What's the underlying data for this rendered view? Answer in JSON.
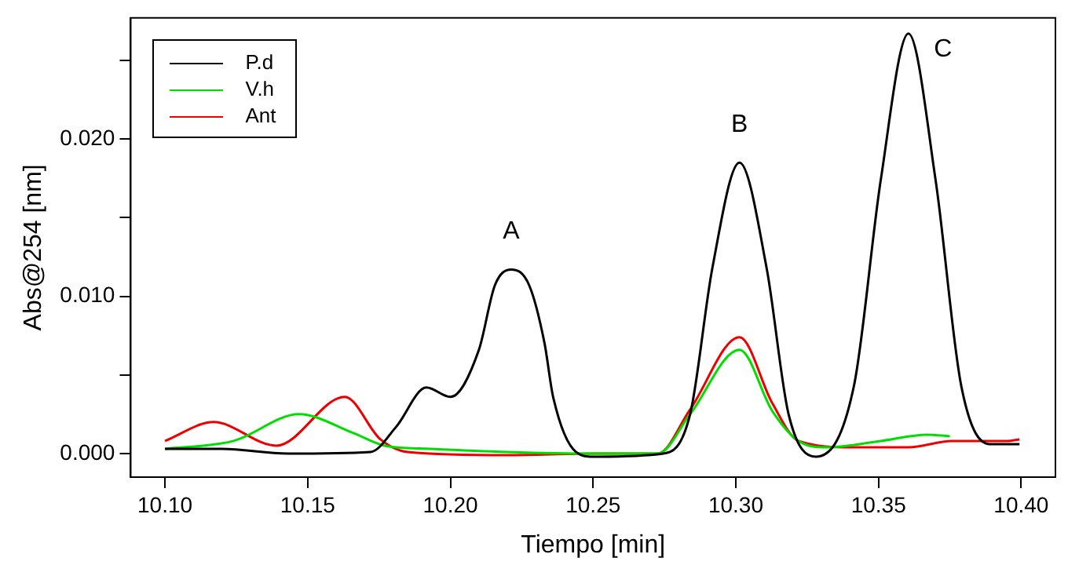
{
  "chart_data": {
    "type": "line",
    "xlabel": "Tiempo [min]",
    "ylabel": "Abs@254 [nm]",
    "xlim": [
      10.088,
      10.412
    ],
    "xticks": [
      {
        "value": 10.1,
        "label": "10.10"
      },
      {
        "value": 10.15,
        "label": "10.15"
      },
      {
        "value": 10.2,
        "label": "10.20"
      },
      {
        "value": 10.25,
        "label": "10.25"
      },
      {
        "value": 10.3,
        "label": "10.30"
      },
      {
        "value": 10.35,
        "label": "10.35"
      },
      {
        "value": 10.4,
        "label": "10.40"
      }
    ],
    "ylim": [
      -0.0015,
      0.0277
    ],
    "yticks": [
      {
        "value": 0,
        "label": "0.000"
      },
      {
        "value": 0.005,
        "label": null
      },
      {
        "value": 0.01,
        "label": "0.010"
      },
      {
        "value": 0.015,
        "label": null
      },
      {
        "value": 0.02,
        "label": "0.020"
      },
      {
        "value": 0.025,
        "label": null
      }
    ],
    "grid": false,
    "legend": "top left",
    "marker": "none",
    "line_style": "solid",
    "series": [
      {
        "name": "P.d",
        "color": "#000000",
        "x": [
          10.1,
          10.12,
          10.143,
          10.172,
          10.181,
          10.1916,
          10.2,
          10.21,
          10.2156,
          10.2213,
          10.2276,
          10.233,
          10.236,
          10.244,
          10.25,
          10.2746,
          10.284,
          10.2918,
          10.3013,
          10.3108,
          10.3185,
          10.328,
          10.3414,
          10.3508,
          10.3605,
          10.37,
          10.379,
          10.389,
          10.3994
        ],
        "values": [
          0.0003,
          0.0003,
          0,
          0.0001,
          0.0017,
          0.0042,
          0.0036,
          0.0066,
          0.0107,
          0.0117,
          0.0107,
          0.007,
          0.0036,
          0.0001,
          -0.0002,
          0,
          0.0025,
          0.0118,
          0.0185,
          0.0118,
          0.0025,
          -0.0002,
          0.0043,
          0.0174,
          0.0267,
          0.0174,
          0.0043,
          0.0006,
          0.0006
        ]
      },
      {
        "name": "V.h",
        "color": "#00dd00",
        "x": [
          10.1,
          10.124,
          10.147,
          10.166,
          10.177,
          10.193,
          10.22,
          10.25,
          10.2727,
          10.284,
          10.3013,
          10.3128,
          10.322,
          10.332,
          10.3508,
          10.367,
          10.375
        ],
        "values": [
          0.0003,
          0.0008,
          0.0025,
          0.0013,
          0.0005,
          0.0003,
          0.0001,
          0,
          0,
          0.0025,
          0.0066,
          0.0027,
          0.0008,
          0.0004,
          0.0008,
          0.0012,
          0.0011
        ]
      },
      {
        "name": "Ant",
        "color": "#ee0000",
        "x": [
          10.1,
          10.117,
          10.139,
          10.163,
          10.1755,
          10.185,
          10.22,
          10.25,
          10.2727,
          10.284,
          10.3013,
          10.3128,
          10.322,
          10.341,
          10.3605,
          10.3757,
          10.395,
          10.3994
        ],
        "values": [
          0.0008,
          0.002,
          0.0005,
          0.0036,
          0.0009,
          0.0001,
          -0.0001,
          0,
          0,
          0.0028,
          0.0074,
          0.0032,
          0.0008,
          0.0004,
          0.0004,
          0.0008,
          0.0008,
          0.0009
        ]
      }
    ],
    "annotations": [
      "A",
      "B",
      "C"
    ]
  }
}
